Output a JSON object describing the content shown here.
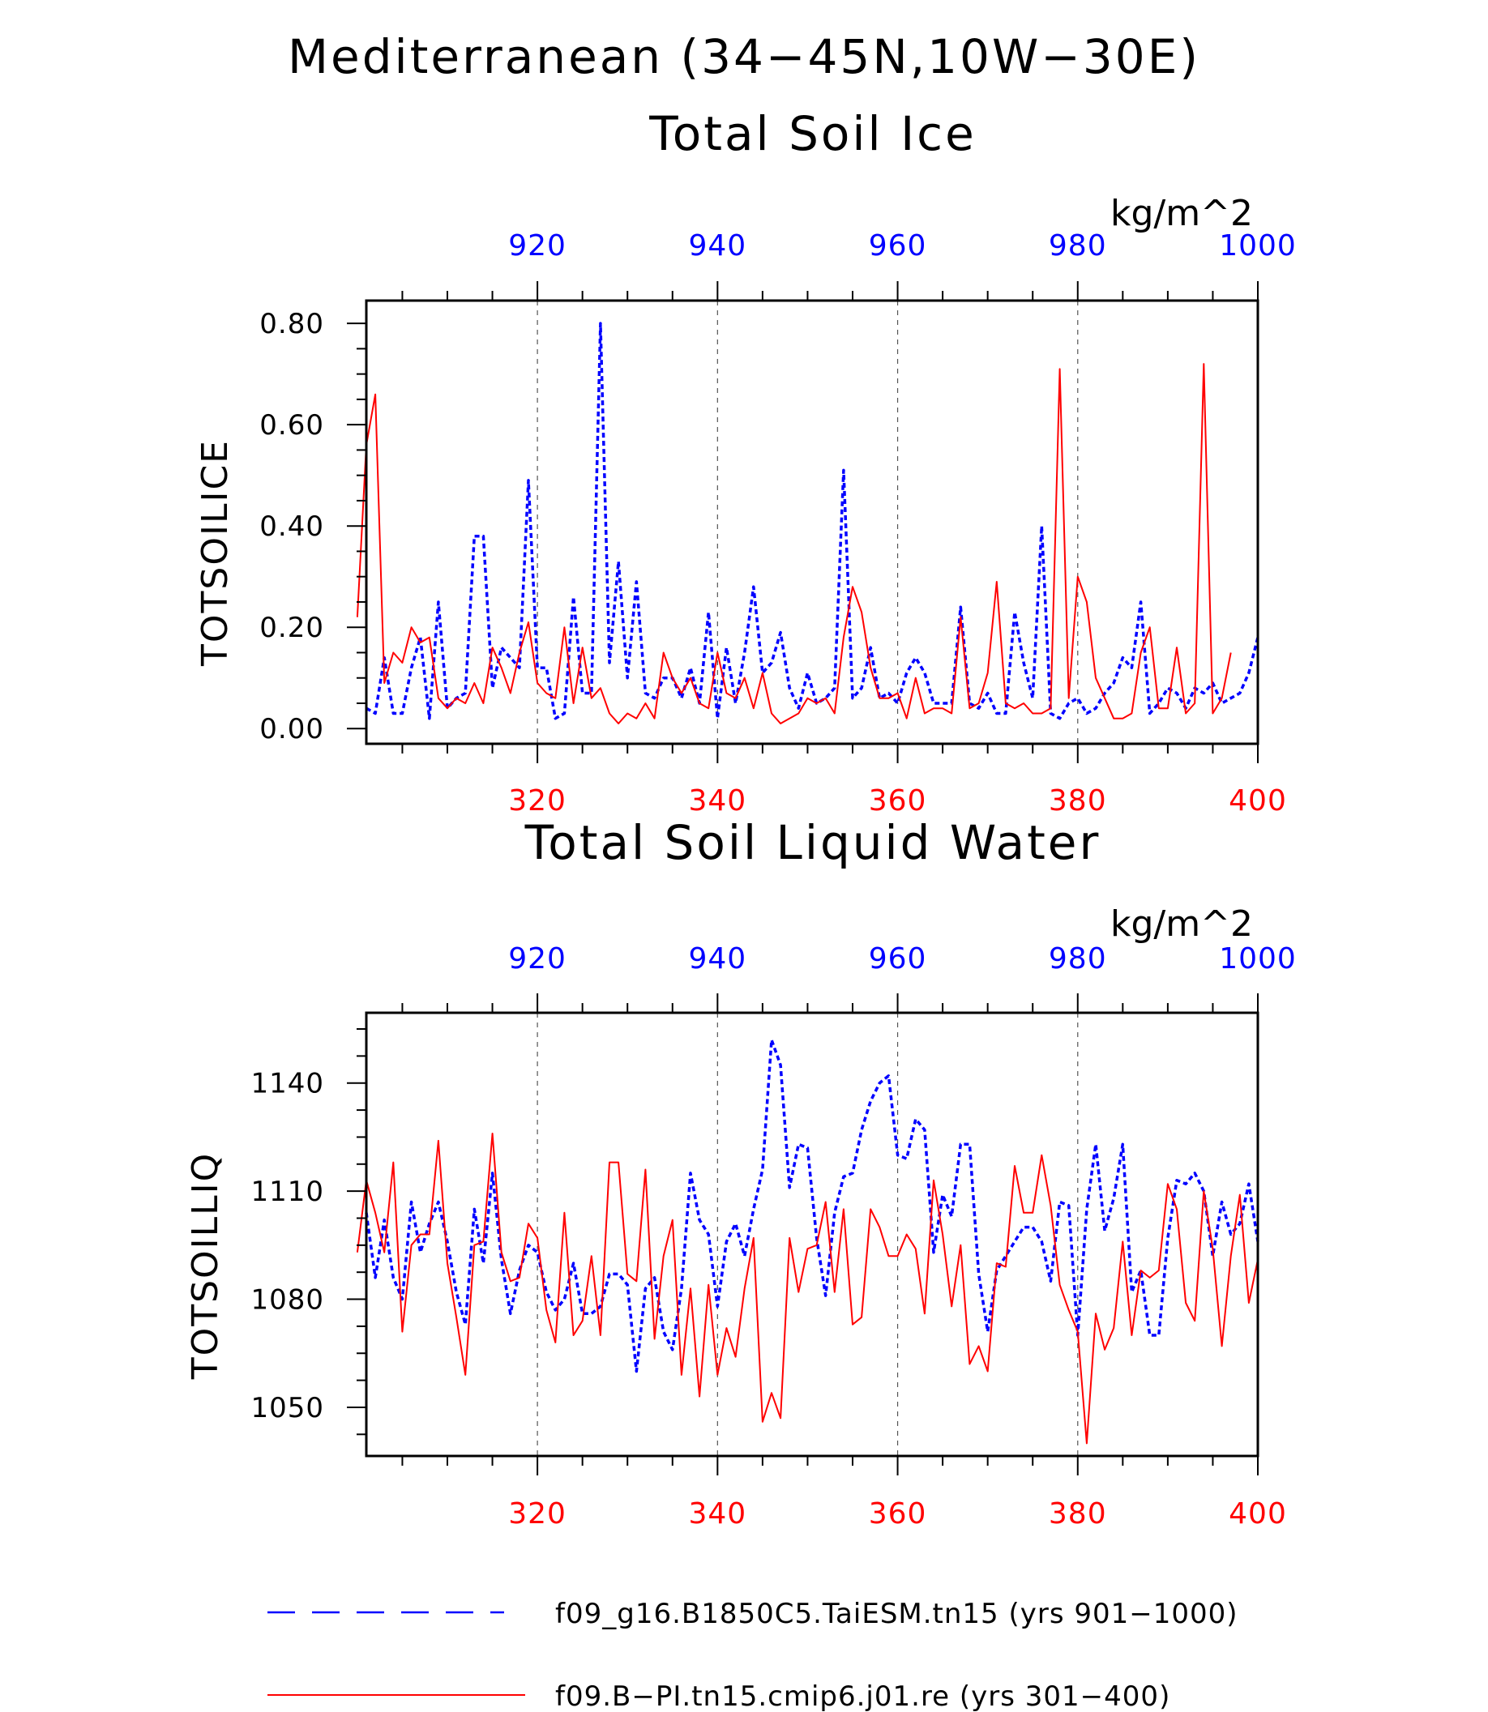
{
  "figure": {
    "title": "Mediterranean (34−45N,10W−30E)"
  },
  "colors": {
    "series_blue": "#0000ff",
    "series_red": "#ff0000",
    "axis": "#000000",
    "grid": "#555555"
  },
  "legend": {
    "entries": [
      {
        "label": "f09_g16.B1850C5.TaiESM.tn15 (yrs 901−1000)",
        "color": "#0000ff",
        "style": "dashed"
      },
      {
        "label": "f09.B−PI.tn15.cmip6.j01.re (yrs 301−400)",
        "color": "#ff0000",
        "style": "solid"
      }
    ]
  },
  "chart_data": [
    {
      "type": "line",
      "title": "Total Soil Ice",
      "units": "kg/m^2",
      "ylabel": "TOTSOILICE",
      "ylim": [
        -0.03,
        0.845
      ],
      "yticks": [
        0.0,
        0.2,
        0.4,
        0.6,
        0.8
      ],
      "ytick_labels": [
        "0.00",
        "0.20",
        "0.40",
        "0.60",
        "0.80"
      ],
      "yminor_step": 0.05,
      "x_bottom": {
        "range": [
          301,
          400
        ],
        "ticks": [
          320,
          340,
          360,
          380,
          400
        ],
        "tick_labels": [
          "320",
          "340",
          "360",
          "380",
          "400"
        ],
        "color": "#ff0000"
      },
      "x_top": {
        "range": [
          901,
          1000
        ],
        "ticks": [
          920,
          940,
          960,
          980,
          1000
        ],
        "tick_labels": [
          "920",
          "940",
          "960",
          "980",
          "1000"
        ],
        "color": "#0000ff"
      },
      "grid": "vertical-dashed",
      "series": [
        {
          "name": "f09_g16.B1850C5.TaiESM.tn15 (yrs 901−1000)",
          "axis": "top",
          "color": "#0000ff",
          "style": "dashed",
          "x_start": 901,
          "values": [
            0.04,
            0.03,
            0.14,
            0.03,
            0.03,
            0.12,
            0.18,
            0.02,
            0.25,
            0.04,
            0.06,
            0.07,
            0.38,
            0.38,
            0.08,
            0.16,
            0.14,
            0.12,
            0.49,
            0.12,
            0.12,
            0.02,
            0.03,
            0.26,
            0.07,
            0.07,
            0.8,
            0.13,
            0.33,
            0.1,
            0.29,
            0.07,
            0.06,
            0.1,
            0.1,
            0.06,
            0.12,
            0.05,
            0.23,
            0.02,
            0.16,
            0.05,
            0.15,
            0.28,
            0.11,
            0.13,
            0.19,
            0.08,
            0.04,
            0.11,
            0.05,
            0.06,
            0.08,
            0.51,
            0.06,
            0.08,
            0.16,
            0.06,
            0.07,
            0.05,
            0.11,
            0.14,
            0.11,
            0.05,
            0.05,
            0.05,
            0.24,
            0.05,
            0.04,
            0.07,
            0.03,
            0.03,
            0.23,
            0.13,
            0.06,
            0.4,
            0.03,
            0.02,
            0.05,
            0.06,
            0.03,
            0.04,
            0.07,
            0.09,
            0.14,
            0.12,
            0.25,
            0.03,
            0.05,
            0.08,
            0.07,
            0.04,
            0.08,
            0.07,
            0.09,
            0.05,
            0.06,
            0.07,
            0.11,
            0.18
          ]
        },
        {
          "name": "f09.B−PI.tn15.cmip6.j01.re (yrs 301−400)",
          "axis": "bottom",
          "color": "#ff0000",
          "style": "solid",
          "x_start": 300,
          "values": [
            0.22,
            0.56,
            0.66,
            0.09,
            0.15,
            0.13,
            0.2,
            0.17,
            0.18,
            0.06,
            0.04,
            0.06,
            0.05,
            0.09,
            0.05,
            0.16,
            0.12,
            0.07,
            0.15,
            0.21,
            0.09,
            0.07,
            0.06,
            0.2,
            0.05,
            0.16,
            0.06,
            0.08,
            0.03,
            0.01,
            0.03,
            0.02,
            0.05,
            0.02,
            0.15,
            0.1,
            0.07,
            0.1,
            0.05,
            0.04,
            0.15,
            0.07,
            0.06,
            0.1,
            0.04,
            0.11,
            0.03,
            0.01,
            0.02,
            0.03,
            0.06,
            0.05,
            0.06,
            0.03,
            0.18,
            0.28,
            0.23,
            0.12,
            0.06,
            0.06,
            0.07,
            0.02,
            0.1,
            0.03,
            0.04,
            0.04,
            0.03,
            0.22,
            0.04,
            0.05,
            0.11,
            0.29,
            0.05,
            0.04,
            0.05,
            0.03,
            0.03,
            0.04,
            0.71,
            0.06,
            0.3,
            0.25,
            0.1,
            0.06,
            0.02,
            0.02,
            0.03,
            0.15,
            0.2,
            0.04,
            0.04,
            0.16,
            0.03,
            0.05,
            0.72,
            0.03,
            0.06,
            0.15
          ]
        }
      ]
    },
    {
      "type": "line",
      "title": "Total Soil Liquid Water",
      "units": "kg/m^2",
      "ylabel": "TOTSOILLIQ",
      "ylim": [
        1036.5,
        1159.5
      ],
      "yticks": [
        1050,
        1080,
        1110,
        1140
      ],
      "ytick_labels": [
        "1050",
        "1080",
        "1110",
        "1140"
      ],
      "yminor_step": 7.5,
      "x_bottom": {
        "range": [
          301,
          400
        ],
        "ticks": [
          320,
          340,
          360,
          380,
          400
        ],
        "tick_labels": [
          "320",
          "340",
          "360",
          "380",
          "400"
        ],
        "color": "#ff0000"
      },
      "x_top": {
        "range": [
          901,
          1000
        ],
        "ticks": [
          920,
          940,
          960,
          980,
          1000
        ],
        "tick_labels": [
          "920",
          "940",
          "960",
          "980",
          "1000"
        ],
        "color": "#0000ff"
      },
      "grid": "vertical-dashed",
      "series": [
        {
          "name": "f09_g16.B1850C5.TaiESM.tn15 (yrs 901−1000)",
          "axis": "top",
          "color": "#0000ff",
          "style": "dashed",
          "x_start": 901,
          "values": [
            1104,
            1086,
            1102,
            1086,
            1080,
            1107,
            1093,
            1101,
            1107,
            1096,
            1082,
            1073,
            1105,
            1090,
            1115,
            1091,
            1076,
            1088,
            1095,
            1093,
            1082,
            1077,
            1080,
            1090,
            1076,
            1076,
            1078,
            1087,
            1087,
            1084,
            1060,
            1083,
            1086,
            1071,
            1066,
            1083,
            1115,
            1102,
            1098,
            1078,
            1096,
            1101,
            1092,
            1105,
            1116,
            1152,
            1145,
            1111,
            1123,
            1122,
            1097,
            1081,
            1104,
            1114,
            1115,
            1127,
            1135,
            1140,
            1142,
            1120,
            1119,
            1130,
            1127,
            1093,
            1109,
            1103,
            1123,
            1123,
            1087,
            1071,
            1088,
            1092,
            1096,
            1100,
            1100,
            1096,
            1085,
            1107,
            1106,
            1070,
            1105,
            1123,
            1099,
            1108,
            1123,
            1082,
            1088,
            1070,
            1070,
            1097,
            1113,
            1112,
            1115,
            1110,
            1092,
            1107,
            1098,
            1101,
            1112,
            1096
          ]
        },
        {
          "name": "f09.B−PI.tn15.cmip6.j01.re (yrs 301−400)",
          "axis": "bottom",
          "color": "#ff0000",
          "style": "solid",
          "x_start": 300,
          "values": [
            1093,
            1113,
            1104,
            1093,
            1118,
            1071,
            1095,
            1098,
            1098,
            1124,
            1090,
            1075,
            1059,
            1095,
            1096,
            1126,
            1093,
            1085,
            1086,
            1101,
            1097,
            1077,
            1068,
            1104,
            1070,
            1074,
            1092,
            1070,
            1118,
            1118,
            1087,
            1085,
            1116,
            1069,
            1092,
            1102,
            1059,
            1083,
            1053,
            1084,
            1059,
            1072,
            1064,
            1083,
            1097,
            1046,
            1054,
            1047,
            1097,
            1082,
            1094,
            1095,
            1107,
            1082,
            1105,
            1073,
            1075,
            1105,
            1100,
            1092,
            1092,
            1098,
            1094,
            1076,
            1113,
            1098,
            1078,
            1095,
            1062,
            1067,
            1060,
            1090,
            1089,
            1117,
            1104,
            1104,
            1120,
            1106,
            1084,
            1077,
            1071,
            1040,
            1076,
            1066,
            1072,
            1096,
            1070,
            1088,
            1086,
            1088,
            1112,
            1105,
            1079,
            1074,
            1110,
            1094,
            1067,
            1092,
            1109,
            1079,
            1091
          ]
        }
      ]
    }
  ]
}
